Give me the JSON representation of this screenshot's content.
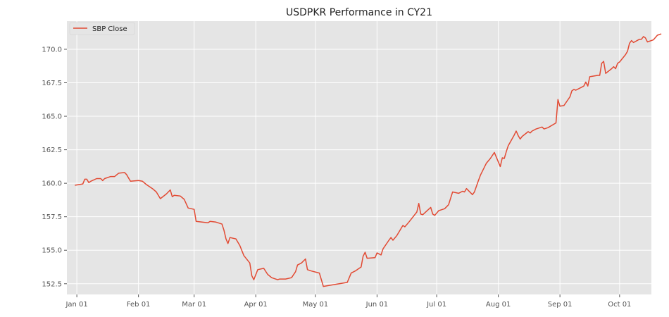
{
  "chart_data": {
    "type": "line",
    "title": "USDPKR Performance in CY21",
    "xlabel": "",
    "ylabel": "",
    "x_range": [
      "2020-12-27",
      "2021-10-17"
    ],
    "ylim": [
      151.7,
      172.1
    ],
    "x_ticks": [
      {
        "date": "2021-01-01",
        "label": "Jan 01"
      },
      {
        "date": "2021-02-01",
        "label": "Feb 01"
      },
      {
        "date": "2021-03-01",
        "label": "Mar 01"
      },
      {
        "date": "2021-04-01",
        "label": "Apr 01"
      },
      {
        "date": "2021-05-01",
        "label": "May 01"
      },
      {
        "date": "2021-06-01",
        "label": "Jun 01"
      },
      {
        "date": "2021-07-01",
        "label": "Jul 01"
      },
      {
        "date": "2021-08-01",
        "label": "Aug 01"
      },
      {
        "date": "2021-09-01",
        "label": "Sep 01"
      },
      {
        "date": "2021-10-01",
        "label": "Oct 01"
      }
    ],
    "y_ticks": [
      {
        "value": 152.5,
        "label": "152.5"
      },
      {
        "value": 155.0,
        "label": "155.0"
      },
      {
        "value": 157.5,
        "label": "157.5"
      },
      {
        "value": 160.0,
        "label": "160.0"
      },
      {
        "value": 162.5,
        "label": "162.5"
      },
      {
        "value": 165.0,
        "label": "165.0"
      },
      {
        "value": 167.5,
        "label": "167.5"
      },
      {
        "value": 170.0,
        "label": "170.0"
      }
    ],
    "grid": true,
    "legend_position": "top-left",
    "series": [
      {
        "name": "SBP Close",
        "color": "#E24A33",
        "points": [
          [
            "2020-12-31",
            159.85
          ],
          [
            "2021-01-04",
            159.95
          ],
          [
            "2021-01-05",
            160.3
          ],
          [
            "2021-01-06",
            160.3
          ],
          [
            "2021-01-07",
            160.05
          ],
          [
            "2021-01-08",
            160.15
          ],
          [
            "2021-01-11",
            160.35
          ],
          [
            "2021-01-13",
            160.35
          ],
          [
            "2021-01-14",
            160.2
          ],
          [
            "2021-01-15",
            160.35
          ],
          [
            "2021-01-18",
            160.5
          ],
          [
            "2021-01-20",
            160.5
          ],
          [
            "2021-01-22",
            160.75
          ],
          [
            "2021-01-25",
            160.8
          ],
          [
            "2021-01-26",
            160.65
          ],
          [
            "2021-01-28",
            160.15
          ],
          [
            "2021-02-01",
            160.2
          ],
          [
            "2021-02-03",
            160.15
          ],
          [
            "2021-02-05",
            159.9
          ],
          [
            "2021-02-08",
            159.6
          ],
          [
            "2021-02-10",
            159.35
          ],
          [
            "2021-02-12",
            158.85
          ],
          [
            "2021-02-15",
            159.2
          ],
          [
            "2021-02-17",
            159.5
          ],
          [
            "2021-02-18",
            159.0
          ],
          [
            "2021-02-19",
            159.1
          ],
          [
            "2021-02-22",
            159.05
          ],
          [
            "2021-02-24",
            158.8
          ],
          [
            "2021-02-26",
            158.15
          ],
          [
            "2021-03-01",
            158.05
          ],
          [
            "2021-03-02",
            157.15
          ],
          [
            "2021-03-05",
            157.1
          ],
          [
            "2021-03-08",
            157.05
          ],
          [
            "2021-03-09",
            157.15
          ],
          [
            "2021-03-12",
            157.1
          ],
          [
            "2021-03-15",
            156.95
          ],
          [
            "2021-03-16",
            156.5
          ],
          [
            "2021-03-17",
            155.85
          ],
          [
            "2021-03-18",
            155.5
          ],
          [
            "2021-03-19",
            155.95
          ],
          [
            "2021-03-22",
            155.85
          ],
          [
            "2021-03-24",
            155.35
          ],
          [
            "2021-03-26",
            154.6
          ],
          [
            "2021-03-29",
            154.05
          ],
          [
            "2021-03-30",
            153.1
          ],
          [
            "2021-03-31",
            152.8
          ],
          [
            "2021-04-02",
            153.55
          ],
          [
            "2021-04-05",
            153.65
          ],
          [
            "2021-04-07",
            153.2
          ],
          [
            "2021-04-09",
            152.95
          ],
          [
            "2021-04-12",
            152.8
          ],
          [
            "2021-04-13",
            152.85
          ],
          [
            "2021-04-16",
            152.85
          ],
          [
            "2021-04-19",
            152.95
          ],
          [
            "2021-04-21",
            153.4
          ],
          [
            "2021-04-22",
            153.9
          ],
          [
            "2021-04-24",
            154.05
          ],
          [
            "2021-04-26",
            154.35
          ],
          [
            "2021-04-27",
            153.55
          ],
          [
            "2021-04-29",
            153.45
          ],
          [
            "2021-05-03",
            153.3
          ],
          [
            "2021-05-05",
            152.3
          ],
          [
            "2021-05-07",
            152.35
          ],
          [
            "2021-05-17",
            152.6
          ],
          [
            "2021-05-19",
            153.3
          ],
          [
            "2021-05-21",
            153.45
          ],
          [
            "2021-05-24",
            153.75
          ],
          [
            "2021-05-25",
            154.55
          ],
          [
            "2021-05-26",
            154.85
          ],
          [
            "2021-05-27",
            154.4
          ],
          [
            "2021-05-31",
            154.45
          ],
          [
            "2021-06-01",
            154.8
          ],
          [
            "2021-06-03",
            154.65
          ],
          [
            "2021-06-04",
            155.1
          ],
          [
            "2021-06-07",
            155.75
          ],
          [
            "2021-06-08",
            155.95
          ],
          [
            "2021-06-09",
            155.75
          ],
          [
            "2021-06-11",
            156.1
          ],
          [
            "2021-06-14",
            156.85
          ],
          [
            "2021-06-15",
            156.75
          ],
          [
            "2021-06-17",
            157.1
          ],
          [
            "2021-06-21",
            157.85
          ],
          [
            "2021-06-22",
            158.5
          ],
          [
            "2021-06-23",
            157.7
          ],
          [
            "2021-06-24",
            157.65
          ],
          [
            "2021-06-28",
            158.2
          ],
          [
            "2021-06-29",
            157.7
          ],
          [
            "2021-06-30",
            157.6
          ],
          [
            "2021-07-02",
            157.95
          ],
          [
            "2021-07-05",
            158.1
          ],
          [
            "2021-07-07",
            158.4
          ],
          [
            "2021-07-09",
            159.35
          ],
          [
            "2021-07-12",
            159.25
          ],
          [
            "2021-07-14",
            159.4
          ],
          [
            "2021-07-15",
            159.35
          ],
          [
            "2021-07-16",
            159.6
          ],
          [
            "2021-07-19",
            159.15
          ],
          [
            "2021-07-20",
            159.35
          ],
          [
            "2021-07-22",
            160.2
          ],
          [
            "2021-07-23",
            160.6
          ],
          [
            "2021-07-26",
            161.5
          ],
          [
            "2021-07-28",
            161.85
          ],
          [
            "2021-07-30",
            162.3
          ],
          [
            "2021-08-02",
            161.25
          ],
          [
            "2021-08-03",
            161.9
          ],
          [
            "2021-08-04",
            161.85
          ],
          [
            "2021-08-05",
            162.35
          ],
          [
            "2021-08-06",
            162.8
          ],
          [
            "2021-08-09",
            163.6
          ],
          [
            "2021-08-10",
            163.9
          ],
          [
            "2021-08-11",
            163.55
          ],
          [
            "2021-08-12",
            163.3
          ],
          [
            "2021-08-13",
            163.5
          ],
          [
            "2021-08-16",
            163.85
          ],
          [
            "2021-08-17",
            163.75
          ],
          [
            "2021-08-18",
            163.9
          ],
          [
            "2021-08-20",
            164.05
          ],
          [
            "2021-08-23",
            164.2
          ],
          [
            "2021-08-24",
            164.05
          ],
          [
            "2021-08-26",
            164.15
          ],
          [
            "2021-08-30",
            164.5
          ],
          [
            "2021-08-31",
            166.25
          ],
          [
            "2021-09-01",
            165.75
          ],
          [
            "2021-09-03",
            165.8
          ],
          [
            "2021-09-06",
            166.45
          ],
          [
            "2021-09-07",
            166.9
          ],
          [
            "2021-09-08",
            167.0
          ],
          [
            "2021-09-09",
            166.95
          ],
          [
            "2021-09-13",
            167.25
          ],
          [
            "2021-09-14",
            167.55
          ],
          [
            "2021-09-15",
            167.25
          ],
          [
            "2021-09-16",
            167.95
          ],
          [
            "2021-09-20",
            168.05
          ],
          [
            "2021-09-21",
            168.05
          ],
          [
            "2021-09-22",
            168.95
          ],
          [
            "2021-09-23",
            169.1
          ],
          [
            "2021-09-24",
            168.2
          ],
          [
            "2021-09-27",
            168.55
          ],
          [
            "2021-09-28",
            168.7
          ],
          [
            "2021-09-29",
            168.55
          ],
          [
            "2021-09-30",
            168.95
          ],
          [
            "2021-10-01",
            169.05
          ],
          [
            "2021-10-04",
            169.6
          ],
          [
            "2021-10-05",
            169.85
          ],
          [
            "2021-10-06",
            170.45
          ],
          [
            "2021-10-07",
            170.65
          ],
          [
            "2021-10-08",
            170.5
          ],
          [
            "2021-10-11",
            170.75
          ],
          [
            "2021-10-12",
            170.75
          ],
          [
            "2021-10-13",
            170.95
          ],
          [
            "2021-10-14",
            170.85
          ],
          [
            "2021-10-15",
            170.55
          ],
          [
            "2021-10-18",
            170.7
          ],
          [
            "2021-10-20",
            171.05
          ],
          [
            "2021-10-22",
            171.15
          ]
        ]
      }
    ]
  }
}
